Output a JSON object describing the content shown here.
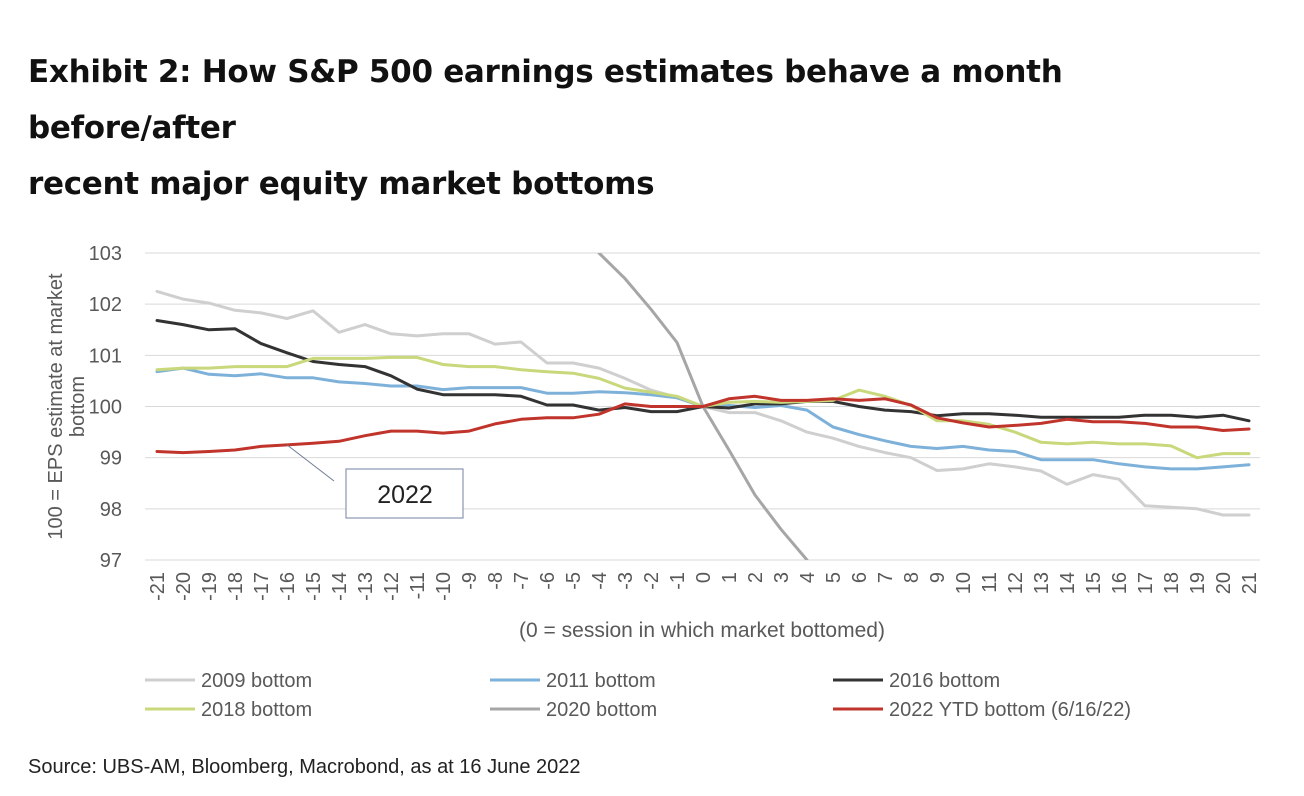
{
  "title": {
    "line1": "Exhibit 2: How S&P 500 earnings estimates behave a month before/after",
    "line2": "recent major equity market bottoms"
  },
  "source": "Source: UBS-AM, Bloomberg, Macrobond, as at 16 June 2022",
  "chart_data": {
    "type": "line",
    "title": "Exhibit 2: How S&P 500 earnings estimates behave a month before/after recent major equity market bottoms",
    "xlabel": "(0 = session in which market bottomed)",
    "ylabel": "100 = EPS estimate at market bottom",
    "ylim": [
      97,
      103
    ],
    "yticks": [
      "103",
      "102",
      "101",
      "100",
      "99",
      "98",
      "97"
    ],
    "x": [
      -21,
      -20,
      -19,
      -18,
      -17,
      -16,
      -15,
      -14,
      -13,
      -12,
      -11,
      -10,
      -9,
      -8,
      -7,
      -6,
      -5,
      -4,
      -3,
      -2,
      -1,
      0,
      1,
      2,
      3,
      4,
      5,
      6,
      7,
      8,
      9,
      10,
      11,
      12,
      13,
      14,
      15,
      16,
      17,
      18,
      19,
      20,
      21
    ],
    "xtick_labels": [
      "-21",
      "-20",
      "-19",
      "-18",
      "-17",
      "-16",
      "-15",
      "-14",
      "-13",
      "-12",
      "-11",
      "-10",
      "-9",
      "-8",
      "-7",
      "-6",
      "-5",
      "-4",
      "-3",
      "-2",
      "-1",
      "0",
      "1",
      "2",
      "3",
      "4",
      "5",
      "6",
      "7",
      "8",
      "9",
      "10",
      "11",
      "12",
      "13",
      "14",
      "15",
      "16",
      "17",
      "18",
      "19",
      "20",
      "21"
    ],
    "grid": true,
    "legend_position": "bottom",
    "annotation": {
      "text": "2022",
      "points_to_x": -16,
      "points_to_y": 99.25
    },
    "series": [
      {
        "name": "2009 bottom",
        "color": "#cfcfcf",
        "values": [
          102.25,
          102.1,
          102.02,
          101.88,
          101.83,
          101.72,
          101.87,
          101.45,
          101.6,
          101.42,
          101.38,
          101.42,
          101.42,
          101.22,
          101.26,
          100.85,
          100.85,
          100.75,
          100.55,
          100.32,
          100.18,
          100.0,
          99.88,
          99.88,
          99.72,
          99.5,
          99.38,
          99.22,
          99.1,
          99.0,
          98.75,
          98.78,
          98.88,
          98.82,
          98.74,
          98.48,
          98.67,
          98.58,
          98.06,
          98.03,
          98.0,
          97.88,
          97.88
        ]
      },
      {
        "name": "2011 bottom",
        "color": "#7eb1d9",
        "values": [
          100.68,
          100.75,
          100.63,
          100.6,
          100.64,
          100.56,
          100.56,
          100.48,
          100.45,
          100.4,
          100.4,
          100.33,
          100.37,
          100.37,
          100.37,
          100.26,
          100.26,
          100.29,
          100.27,
          100.23,
          100.17,
          100.0,
          100.02,
          99.98,
          100.02,
          99.93,
          99.6,
          99.45,
          99.33,
          99.22,
          99.18,
          99.22,
          99.15,
          99.12,
          98.96,
          98.96,
          98.96,
          98.88,
          98.82,
          98.78,
          98.78,
          98.82,
          98.86
        ]
      },
      {
        "name": "2016 bottom",
        "color": "#333333",
        "values": [
          101.68,
          101.6,
          101.5,
          101.52,
          101.23,
          101.05,
          100.88,
          100.82,
          100.78,
          100.6,
          100.34,
          100.23,
          100.23,
          100.23,
          100.2,
          100.03,
          100.03,
          99.93,
          99.98,
          99.9,
          99.9,
          100.0,
          99.97,
          100.05,
          100.05,
          100.1,
          100.1,
          100.0,
          99.93,
          99.9,
          99.82,
          99.86,
          99.86,
          99.83,
          99.79,
          99.79,
          99.79,
          99.79,
          99.83,
          99.83,
          99.79,
          99.83,
          99.72
        ]
      },
      {
        "name": "2018 bottom",
        "color": "#c8d87a",
        "values": [
          100.72,
          100.75,
          100.75,
          100.78,
          100.78,
          100.78,
          100.94,
          100.94,
          100.94,
          100.96,
          100.96,
          100.82,
          100.78,
          100.78,
          100.72,
          100.68,
          100.65,
          100.55,
          100.36,
          100.28,
          100.2,
          100.0,
          100.08,
          100.1,
          100.08,
          100.1,
          100.12,
          100.32,
          100.2,
          100.02,
          99.72,
          99.72,
          99.65,
          99.5,
          99.3,
          99.27,
          99.3,
          99.27,
          99.27,
          99.23,
          99.0,
          99.08,
          99.08
        ]
      },
      {
        "name": "2020 bottom",
        "color": "#a6a6a6",
        "values": [
          null,
          null,
          null,
          null,
          null,
          null,
          null,
          null,
          null,
          null,
          null,
          null,
          null,
          null,
          null,
          null,
          null,
          103.0,
          102.5,
          101.9,
          101.25,
          100.0,
          99.15,
          98.27,
          97.6,
          97.0,
          null,
          null,
          null,
          null,
          null,
          null,
          null,
          null,
          null,
          null,
          null,
          null,
          null,
          null,
          null,
          null,
          null
        ]
      },
      {
        "name": "2022 YTD bottom (6/16/22)",
        "color": "#c0342b",
        "values": [
          99.12,
          99.1,
          99.12,
          99.15,
          99.22,
          99.25,
          99.28,
          99.32,
          99.43,
          99.52,
          99.52,
          99.48,
          99.52,
          99.66,
          99.75,
          99.78,
          99.78,
          99.85,
          100.05,
          100.0,
          100.0,
          100.0,
          100.15,
          100.2,
          100.12,
          100.12,
          100.15,
          100.12,
          100.15,
          100.03,
          99.78,
          99.68,
          99.6,
          99.63,
          99.67,
          99.75,
          99.7,
          99.7,
          99.67,
          99.6,
          99.6,
          99.53,
          99.56
        ]
      }
    ]
  }
}
